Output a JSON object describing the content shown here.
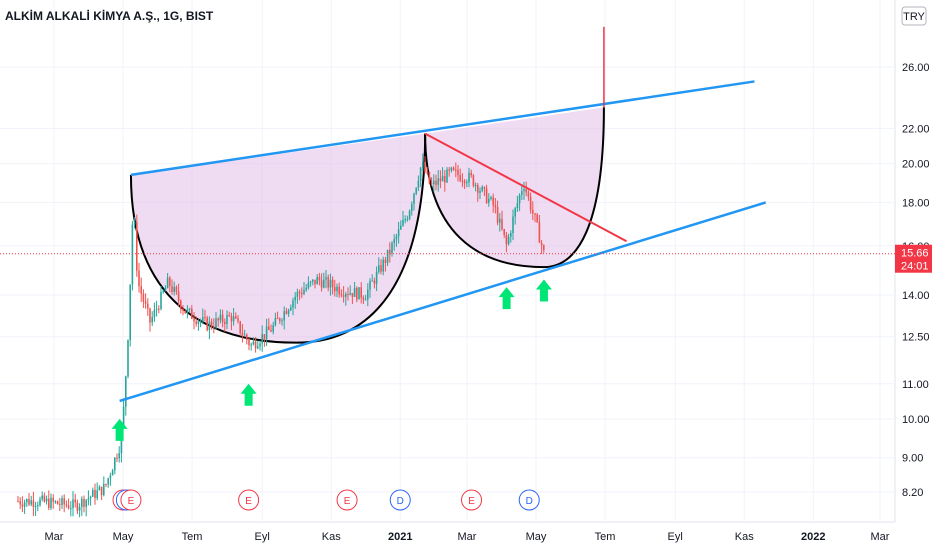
{
  "header": {
    "title": "ALKİM ALKALİ KİMYA A.Ş., 1G, BIST",
    "currency": "TRY"
  },
  "chart_data": {
    "type": "candlestick",
    "symbol": "ALKİM ALKALİ KİMYA A.Ş., 1G, BIST",
    "scale": "log",
    "ylim": [
      7.6,
      29.0
    ],
    "y_ticks": [
      8.2,
      9.0,
      10.0,
      11.0,
      12.5,
      14.0,
      16.0,
      18.0,
      20.0,
      22.0,
      26.0
    ],
    "y_tick_labels": [
      "8.20",
      "9.00",
      "10.00",
      "11.00",
      "12.50",
      "14.00",
      "16.00",
      "18.00",
      "20.00",
      "22.00",
      "26.00"
    ],
    "x_ticks": [
      "Mar",
      "May",
      "Tem",
      "Eyl",
      "Kas",
      "2021",
      "Mar",
      "May",
      "Tem",
      "Eyl",
      "Kas",
      "2022",
      "Mar"
    ],
    "x_tick_dates": [
      "2020-03",
      "2020-05",
      "2020-07",
      "2020-09",
      "2020-11",
      "2021-01",
      "2021-03",
      "2021-05",
      "2021-07",
      "2021-09",
      "2021-11",
      "2022-01",
      "2022-03"
    ],
    "current_price": {
      "value": 15.66,
      "label": "15.66",
      "countdown": "24:01",
      "color": "#f23645"
    },
    "up_color": "#26a69a",
    "down_color": "#ef5350",
    "price_path": [
      {
        "date": "2020-02-15",
        "price": 8.0
      },
      {
        "date": "2020-03-20",
        "price": 7.9
      },
      {
        "date": "2020-04-15",
        "price": 8.3
      },
      {
        "date": "2020-04-28",
        "price": 9.3
      },
      {
        "date": "2020-05-02",
        "price": 10.4
      },
      {
        "date": "2020-05-06",
        "price": 13.0
      },
      {
        "date": "2020-05-10",
        "price": 18.0
      },
      {
        "date": "2020-05-14",
        "price": 14.5
      },
      {
        "date": "2020-05-25",
        "price": 13.0
      },
      {
        "date": "2020-06-10",
        "price": 14.5
      },
      {
        "date": "2020-06-25",
        "price": 13.4
      },
      {
        "date": "2020-07-15",
        "price": 12.9
      },
      {
        "date": "2020-08-05",
        "price": 13.2
      },
      {
        "date": "2020-08-22",
        "price": 12.2
      },
      {
        "date": "2020-09-10",
        "price": 12.8
      },
      {
        "date": "2020-10-01",
        "price": 14.0
      },
      {
        "date": "2020-10-20",
        "price": 14.6
      },
      {
        "date": "2020-11-10",
        "price": 14.2
      },
      {
        "date": "2020-12-01",
        "price": 14.0
      },
      {
        "date": "2020-12-20",
        "price": 15.5
      },
      {
        "date": "2021-01-08",
        "price": 17.5
      },
      {
        "date": "2021-01-20",
        "price": 20.0
      },
      {
        "date": "2021-01-28",
        "price": 18.8
      },
      {
        "date": "2021-02-15",
        "price": 19.5
      },
      {
        "date": "2021-03-05",
        "price": 19.2
      },
      {
        "date": "2021-03-25",
        "price": 17.8
      },
      {
        "date": "2021-04-05",
        "price": 16.0
      },
      {
        "date": "2021-04-12",
        "price": 17.5
      },
      {
        "date": "2021-04-20",
        "price": 19.0
      },
      {
        "date": "2021-05-01",
        "price": 17.0
      },
      {
        "date": "2021-05-08",
        "price": 15.66
      }
    ],
    "events": [
      {
        "date": "2020-05-01",
        "type": "E",
        "color": "#f23645"
      },
      {
        "date": "2020-05-04",
        "type": "D",
        "color": "#2962ff"
      },
      {
        "date": "2020-05-08",
        "type": "E",
        "color": "#f23645"
      },
      {
        "date": "2020-08-20",
        "type": "E",
        "color": "#f23645"
      },
      {
        "date": "2020-11-15",
        "type": "E",
        "color": "#f23645"
      },
      {
        "date": "2021-01-01",
        "type": "D",
        "color": "#2962ff"
      },
      {
        "date": "2021-03-05",
        "type": "E",
        "color": "#f23645"
      },
      {
        "date": "2021-04-25",
        "type": "D",
        "color": "#2962ff"
      }
    ],
    "drawings": {
      "upper_trendline": {
        "color": "#2196f3",
        "points": [
          {
            "date": "2020-05-08",
            "price": 19.4
          },
          {
            "date": "2021-11-10",
            "price": 25.0
          }
        ]
      },
      "lower_trendline": {
        "color": "#2196f3",
        "points": [
          {
            "date": "2020-04-28",
            "price": 10.5
          },
          {
            "date": "2021-11-20",
            "price": 18.0
          }
        ]
      },
      "resistance_line": {
        "color": "#f23645",
        "points": [
          {
            "date": "2021-01-23",
            "price": 21.7
          },
          {
            "date": "2021-07-20",
            "price": 16.2
          }
        ]
      },
      "breakout_line": {
        "color": "#f23645",
        "points": [
          {
            "date": "2021-06-30",
            "price": 23.3
          },
          {
            "date": "2021-06-30",
            "price": 29.0
          }
        ]
      },
      "cup_fill": "#e1bee7",
      "cups": [
        {
          "start": {
            "date": "2020-05-08",
            "price": 19.4
          },
          "bottom": {
            "date": "2020-10-01",
            "price": 12.3
          },
          "end": {
            "date": "2021-01-23",
            "price": 21.7
          }
        },
        {
          "start": {
            "date": "2021-01-23",
            "price": 21.7
          },
          "bottom": {
            "date": "2021-05-08",
            "price": 15.1
          },
          "end": {
            "date": "2021-06-30",
            "price": 23.3
          }
        }
      ],
      "arrows": [
        {
          "date": "2020-04-28",
          "price": 10.0,
          "color": "#00e676"
        },
        {
          "date": "2020-08-20",
          "price": 11.0,
          "color": "#00e676"
        },
        {
          "date": "2021-04-05",
          "price": 14.3,
          "color": "#00e676"
        },
        {
          "date": "2021-05-08",
          "price": 14.6,
          "color": "#00e676"
        }
      ]
    }
  }
}
